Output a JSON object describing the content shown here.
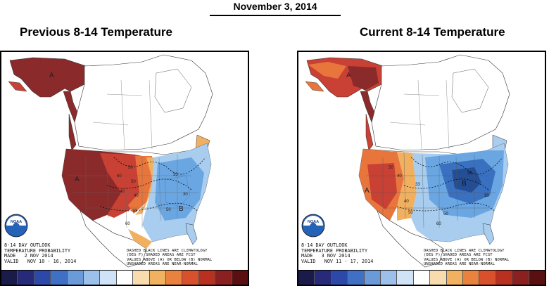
{
  "header": {
    "date": "November 3, 2014"
  },
  "panels": [
    {
      "title": "Previous 8-14 Temperature",
      "outlook_label": "8-14 DAY OUTLOOK",
      "probability_label": "TEMPERATURE PROBABILITY",
      "made": "MADE   2 NOV 2014",
      "valid": "VALID   NOV 10 - 16, 2014",
      "note_lines": [
        "DASHED BLACK LINES ARE CLIMATOLOGY",
        "(DEG F) SHADED AREAS ARE FCST",
        "VALUES ABOVE (A) OR BELOW (B) NORMAL",
        "UNSHADED AREAS ARE NEAR-NORMAL"
      ],
      "region_labels": {
        "above": "A",
        "below": "B"
      },
      "contour_labels": [
        "50",
        "60",
        "40",
        "50",
        "40",
        "33",
        "33",
        "30",
        "50",
        "60"
      ]
    },
    {
      "title": "Current 8-14 Temperature",
      "outlook_label": "8-14 DAY OUTLOOK",
      "probability_label": "TEMPERATURE PROBABILITY",
      "made": "MADE   3 NOV 2014",
      "valid": "VALID   NOV 11 - 17, 2014",
      "note_lines": [
        "DASHED BLACK LINES ARE CLIMATOLOGY",
        "(DEG F) SHADED AREAS ARE FCST",
        "VALUES ABOVE (A) OR BELOW (B) NORMAL",
        "UNSHADED AREAS ARE NEAR-NORMAL"
      ],
      "region_labels": {
        "above": "A",
        "below": "B"
      },
      "contour_labels": [
        "50",
        "40",
        "33",
        "40",
        "50",
        "33",
        "50",
        "60",
        "30"
      ]
    }
  ],
  "legend_colors": [
    "#1b1b4a",
    "#262a78",
    "#2c48a8",
    "#3f70c4",
    "#6a9ad8",
    "#9cc0ea",
    "#cfe2f6",
    "#ffffff",
    "#f8dcae",
    "#f0b260",
    "#e8823e",
    "#d8502c",
    "#b8301f",
    "#8a2020",
    "#5a1010"
  ],
  "colors": {
    "above_strong": "#8b2a2a",
    "above_mid": "#c94034",
    "above_light": "#e8763c",
    "above_faint": "#f0b060",
    "below_light": "#a8cdef",
    "below_mid": "#6aa6e2",
    "below_strong": "#3a70c0",
    "below_darkest": "#234e96"
  },
  "logo": {
    "name": "noaa-logo",
    "text": "NOAA"
  }
}
